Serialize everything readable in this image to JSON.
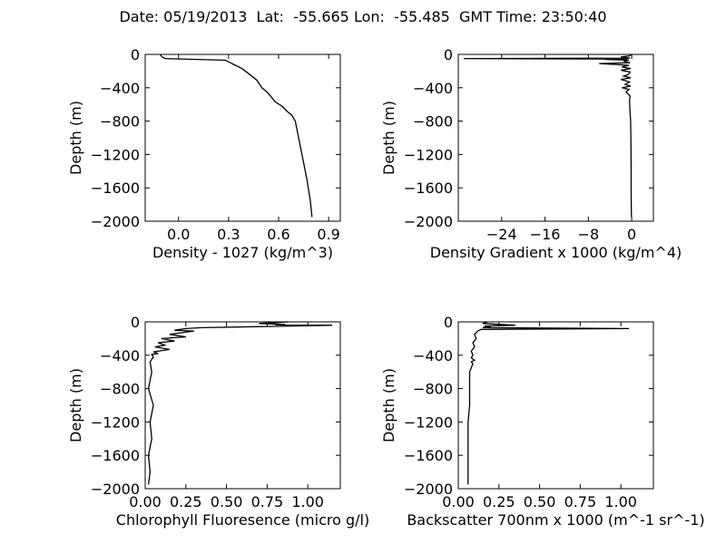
{
  "suptitle": "Date: 05/19/2013  Lat:  -55.665 Lon:  -55.485  GMT Time: 23:50:40",
  "chart_data": [
    {
      "type": "line",
      "xlabel": "Density - 1027 (kg/m^3)",
      "ylabel": "Depth (m)",
      "xlim": [
        -0.2,
        0.97
      ],
      "ylim": [
        -2000,
        0
      ],
      "xticks": [
        0.0,
        0.3,
        0.6,
        0.9
      ],
      "xtick_labels": [
        "0.0",
        "0.3",
        "0.6",
        "0.9"
      ],
      "yticks": [
        0,
        -400,
        -800,
        -1200,
        -1600,
        -2000
      ],
      "ytick_labels": [
        "0",
        "−400",
        "−800",
        "−1200",
        "−1600",
        "−2000"
      ],
      "series": [
        {
          "x": [
            -0.11,
            -0.1,
            -0.08,
            0.1,
            0.28,
            0.33,
            0.38,
            0.42,
            0.47,
            0.5,
            0.53,
            0.56,
            0.58,
            0.62,
            0.65,
            0.68,
            0.7,
            0.71,
            0.73,
            0.75,
            0.77,
            0.79,
            0.8
          ],
          "y": [
            0,
            -30,
            -50,
            -60,
            -70,
            -120,
            -170,
            -230,
            -310,
            -400,
            -450,
            -520,
            -570,
            -620,
            -680,
            -730,
            -800,
            -900,
            -1100,
            -1300,
            -1500,
            -1750,
            -1950
          ]
        }
      ]
    },
    {
      "type": "line",
      "xlabel": "Density Gradient x 1000 (kg/m^4)",
      "ylabel": "Depth (m)",
      "xlim": [
        -32,
        4
      ],
      "ylim": [
        -2000,
        0
      ],
      "xticks": [
        -24,
        -16,
        -8,
        0
      ],
      "xtick_labels": [
        "−24",
        "−16",
        "−8",
        "0"
      ],
      "yticks": [
        0,
        -400,
        -800,
        -1200,
        -1600,
        -2000
      ],
      "ytick_labels": [
        "0",
        "−400",
        "−800",
        "−1200",
        "−1600",
        "−2000"
      ],
      "series": [
        {
          "x": [
            0,
            -0.5,
            -2,
            -0.3,
            -31,
            -0.8,
            -5,
            -0.5,
            -1.5,
            -0.3,
            -6,
            -0.5,
            -1.8,
            -0.2,
            -2,
            -0.3,
            -0.6,
            -1.5,
            -0.2,
            -2,
            -0.4,
            -1.2,
            -0.2,
            -1.8,
            -0.5,
            -1,
            -0.3,
            -0.4,
            -0.3,
            -0.2,
            -0.15,
            -0.1,
            -0.1,
            -0.05
          ],
          "y": [
            0,
            -20,
            -30,
            -45,
            -50,
            -55,
            -60,
            -70,
            -80,
            -100,
            -110,
            -130,
            -150,
            -170,
            -190,
            -210,
            -240,
            -260,
            -280,
            -300,
            -330,
            -360,
            -380,
            -400,
            -420,
            -450,
            -500,
            -560,
            -700,
            -800,
            -1000,
            -1400,
            -1700,
            -1950
          ]
        }
      ]
    },
    {
      "type": "line",
      "xlabel": "Chlorophyll Fluoresence (micro g/l)",
      "ylabel": "Depth (m)",
      "xlim": [
        0.0,
        1.2
      ],
      "ylim": [
        -2000,
        0
      ],
      "xticks": [
        0.0,
        0.25,
        0.5,
        0.75,
        1.0
      ],
      "xtick_labels": [
        "0.00",
        "0.25",
        "0.50",
        "0.75",
        "1.00"
      ],
      "yticks": [
        0,
        -400,
        -800,
        -1200,
        -1600,
        -2000
      ],
      "ytick_labels": [
        "0",
        "−400",
        "−800",
        "−1200",
        "−1600",
        "−2000"
      ],
      "series": [
        {
          "x": [
            0.88,
            0.7,
            0.86,
            0.8,
            0.88,
            1.15,
            0.9,
            0.35,
            0.25,
            0.18,
            0.3,
            0.22,
            0.15,
            0.25,
            0.1,
            0.18,
            0.08,
            0.12,
            0.06,
            0.15,
            0.05,
            0.08,
            0.04,
            0.05,
            0.03,
            0.04,
            0.02,
            0.05,
            0.03,
            0.04,
            0.02,
            0.03,
            0.02
          ],
          "y": [
            0,
            -20,
            -30,
            -35,
            -40,
            -40,
            -50,
            -70,
            -80,
            -100,
            -110,
            -130,
            -150,
            -180,
            -200,
            -230,
            -250,
            -280,
            -300,
            -330,
            -360,
            -380,
            -390,
            -420,
            -480,
            -600,
            -800,
            -1000,
            -1200,
            -1400,
            -1600,
            -1800,
            -1950
          ]
        }
      ]
    },
    {
      "type": "line",
      "xlabel": "Backscatter 700nm x 1000 (m^-1 sr^-1)",
      "ylabel": "Depth (m)",
      "xlim": [
        0.0,
        1.2
      ],
      "ylim": [
        -2000,
        0
      ],
      "xticks": [
        0.0,
        0.25,
        0.5,
        0.75,
        1.0
      ],
      "xtick_labels": [
        "0.00",
        "0.25",
        "0.50",
        "0.75",
        "1.00"
      ],
      "yticks": [
        0,
        -400,
        -800,
        -1200,
        -1600,
        -2000
      ],
      "ytick_labels": [
        "0",
        "−400",
        "−800",
        "−1200",
        "−1600",
        "−2000"
      ],
      "series": [
        {
          "x": [
            0.18,
            0.15,
            0.35,
            0.16,
            0.2,
            0.15,
            1.05,
            0.14,
            0.12,
            0.1,
            0.11,
            0.09,
            0.1,
            0.08,
            0.09,
            0.08,
            0.1,
            0.08,
            0.09,
            0.07,
            0.07,
            0.07,
            0.06,
            0.06,
            0.06,
            0.06
          ],
          "y": [
            0,
            -20,
            -40,
            -50,
            -60,
            -70,
            -80,
            -90,
            -110,
            -150,
            -200,
            -250,
            -300,
            -350,
            -400,
            -430,
            -460,
            -480,
            -500,
            -600,
            -800,
            -1000,
            -1200,
            -1500,
            -1800,
            -1950
          ]
        }
      ]
    }
  ]
}
